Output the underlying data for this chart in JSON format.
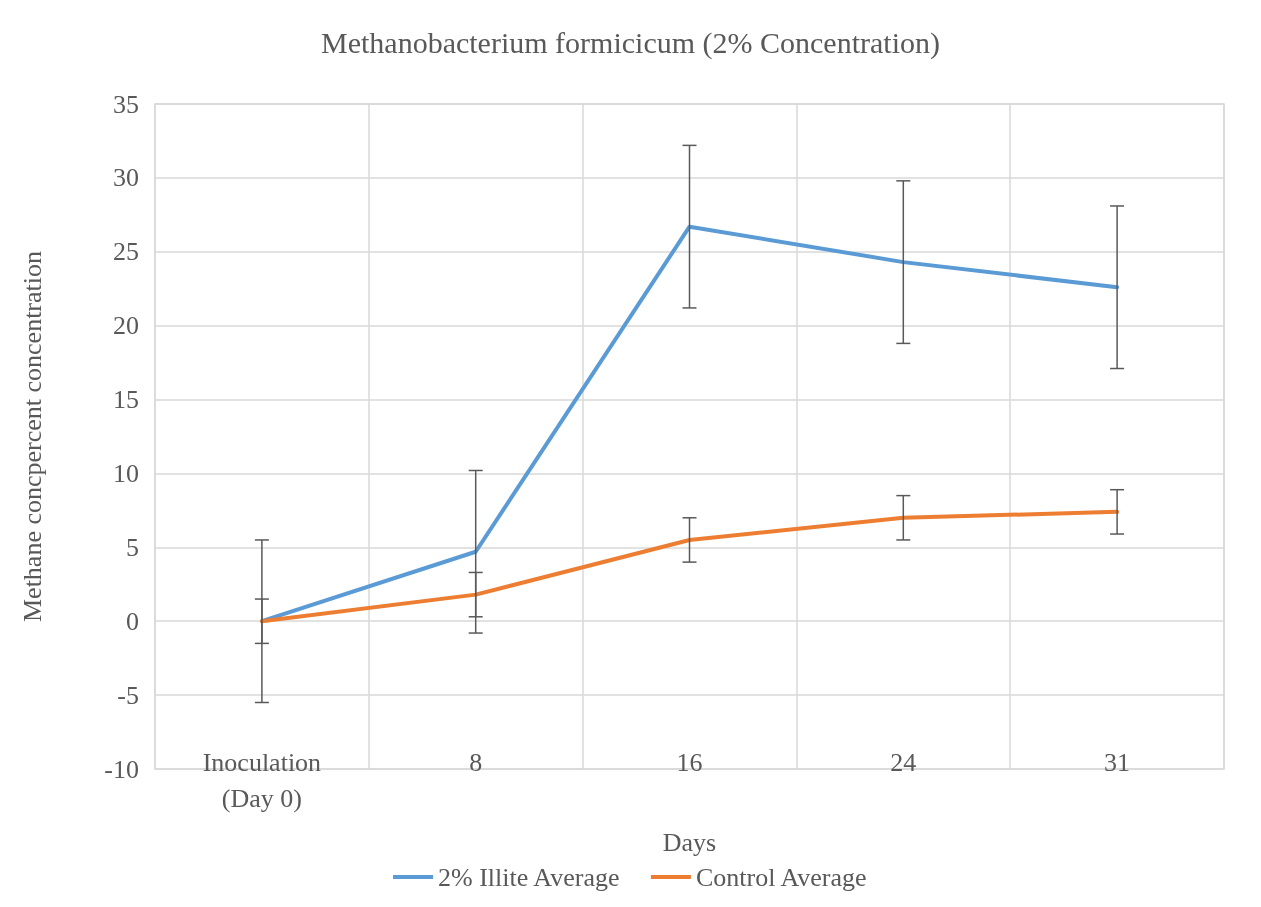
{
  "chart_data": {
    "type": "line",
    "title": "Methanobacterium formicicum (2% Concentration)",
    "xlabel": "Days",
    "ylabel": "Methane concpercent concentration",
    "categories": [
      "Inoculation\n(Day 0)",
      "8",
      "16",
      "24",
      "31"
    ],
    "series": [
      {
        "name": "2% Illite Average",
        "color": "#5b9bd5",
        "values": [
          0,
          4.7,
          26.7,
          24.3,
          22.6
        ],
        "errors": [
          5.5,
          5.5,
          5.5,
          5.5,
          5.5
        ]
      },
      {
        "name": "Control Average",
        "color": "#ed7d31",
        "values": [
          0,
          1.8,
          5.5,
          7.0,
          7.4
        ],
        "errors": [
          1.5,
          1.5,
          1.5,
          1.5,
          1.5
        ]
      }
    ],
    "ylim": [
      -10,
      35
    ],
    "yticks": [
      -10,
      -5,
      0,
      5,
      10,
      15,
      20,
      25,
      30,
      35
    ],
    "grid": true,
    "legend": "bottom",
    "marker": "none",
    "line_style": "solid"
  }
}
